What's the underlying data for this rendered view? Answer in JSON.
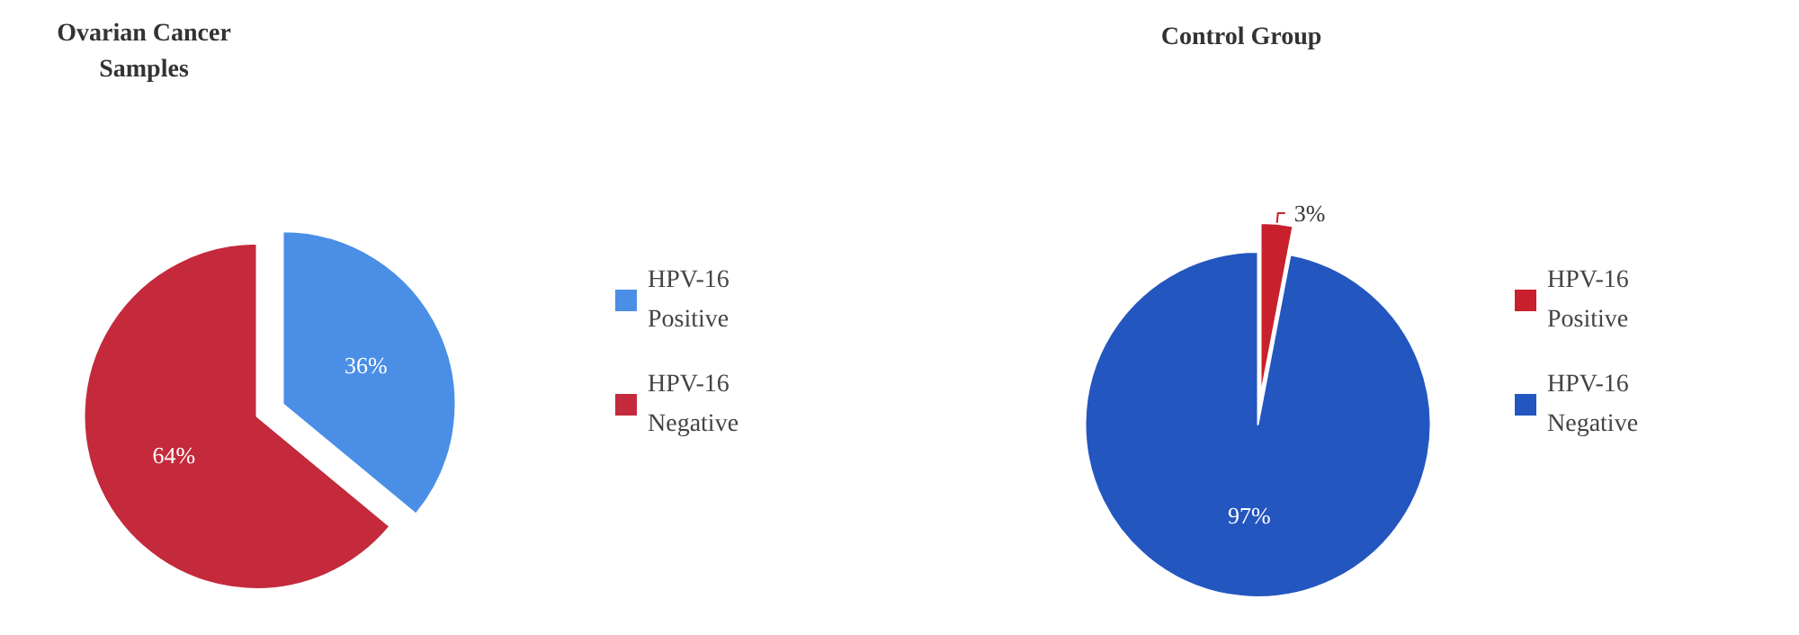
{
  "chart_data": [
    {
      "type": "pie",
      "title": "Ovarian Cancer\nSamples",
      "categories": [
        "HPV-16 Positive",
        "HPV-16 Negative"
      ],
      "values": [
        36,
        64
      ],
      "colors": [
        "#4a8ee6",
        "#c42a3c"
      ],
      "value_labels": [
        "36%",
        "64%"
      ],
      "legend": "right"
    },
    {
      "type": "pie",
      "title": "Control Group",
      "categories": [
        "HPV-16 Positive",
        "HPV-16 Negative"
      ],
      "values": [
        3,
        97
      ],
      "colors": [
        "#c8202c",
        "#2456c0"
      ],
      "value_labels": [
        "3%",
        "97%"
      ],
      "legend": "right"
    }
  ]
}
